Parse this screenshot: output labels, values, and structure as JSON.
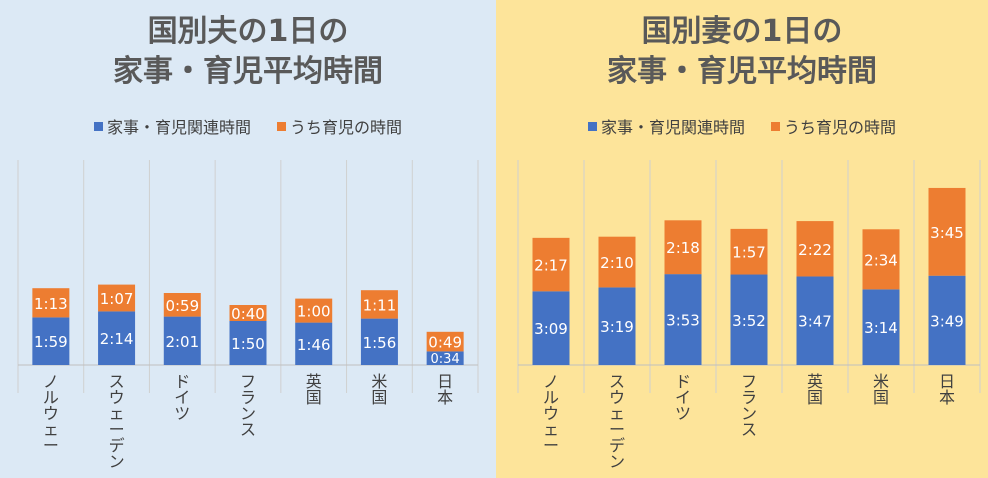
{
  "colors": {
    "housework": "#4472c4",
    "childcare": "#ed7d31",
    "grid": "#d0d0d0",
    "leftBg": "#dce9f5",
    "rightBg": "#fde49a"
  },
  "chart_data": [
    {
      "type": "bar",
      "title": "国別夫の1日の家事・育児平均時間",
      "title_lines": [
        "国別夫の1日の",
        "家事・育児平均時間"
      ],
      "legend": [
        "家事・育児関連時間",
        "うち育児の時間"
      ],
      "categories": [
        "ノルウェー",
        "スウェーデン",
        "ドイツ",
        "フランス",
        "英国",
        "米国",
        "日本"
      ],
      "series": [
        {
          "name": "家事・育児関連時間",
          "labels": [
            "1:59",
            "2:14",
            "2:01",
            "1:50",
            "1:46",
            "1:56",
            "0:34"
          ],
          "values": [
            119,
            134,
            121,
            110,
            106,
            116,
            34
          ]
        },
        {
          "name": "うち育児の時間",
          "labels": [
            "1:13",
            "1:07",
            "0:59",
            "0:40",
            "1:00",
            "1:11",
            "0:49"
          ],
          "values": [
            73,
            67,
            59,
            40,
            60,
            71,
            49
          ]
        }
      ],
      "stacked": true,
      "legend_position": "top"
    },
    {
      "type": "bar",
      "title": "国別妻の1日の家事・育児平均時間",
      "title_lines": [
        "国別妻の1日の",
        "家事・育児平均時間"
      ],
      "legend": [
        "家事・育児関連時間",
        "うち育児の時間"
      ],
      "categories": [
        "ノルウェー",
        "スウェーデン",
        "ドイツ",
        "フランス",
        "英国",
        "米国",
        "日本"
      ],
      "series": [
        {
          "name": "家事・育児関連時間",
          "labels": [
            "3:09",
            "3:19",
            "3:53",
            "3:52",
            "3:47",
            "3:14",
            "3:49"
          ],
          "values": [
            189,
            199,
            233,
            232,
            227,
            194,
            229
          ]
        },
        {
          "name": "うち育児の時間",
          "labels": [
            "2:17",
            "2:10",
            "2:18",
            "1:57",
            "2:22",
            "2:34",
            "3:45"
          ],
          "values": [
            137,
            130,
            138,
            117,
            142,
            154,
            225
          ]
        }
      ],
      "stacked": true,
      "legend_position": "top"
    }
  ]
}
